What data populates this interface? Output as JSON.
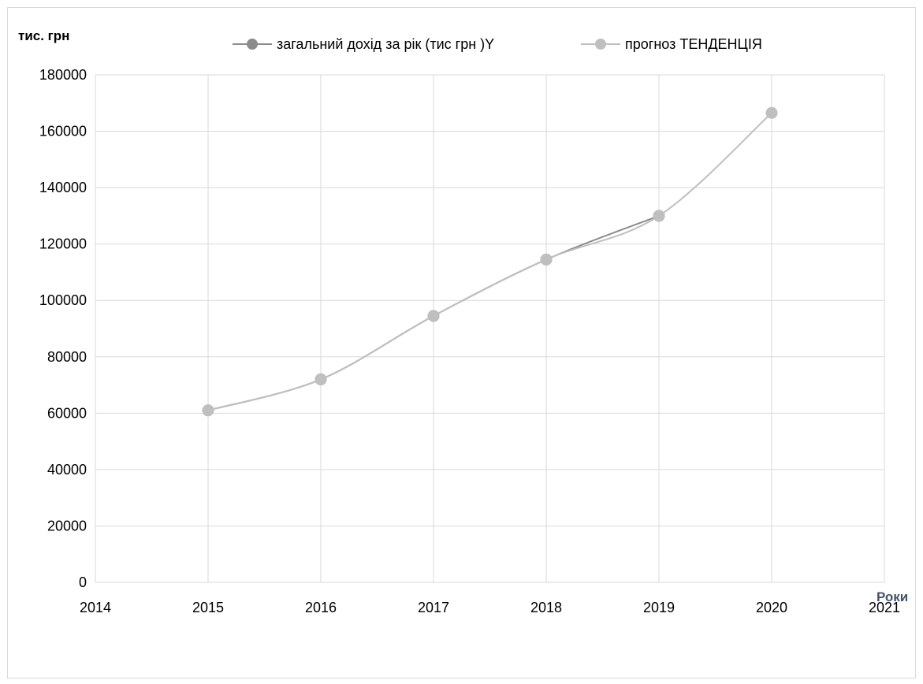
{
  "chart_data": {
    "type": "line",
    "ylabel": "тис. грн",
    "xlabel": "Роки",
    "xlim": [
      2014,
      2021
    ],
    "ylim": [
      0,
      180000
    ],
    "x_ticks": [
      "2014",
      "2015",
      "2016",
      "2017",
      "2018",
      "2019",
      "2020",
      "2021"
    ],
    "y_ticks": [
      "0",
      "20000",
      "40000",
      "60000",
      "80000",
      "100000",
      "120000",
      "140000",
      "160000",
      "180000"
    ],
    "grid": true,
    "legend_position": "top",
    "series": [
      {
        "name": "загальний дохід за рік (тис грн )Y",
        "color": "#8c8c8c",
        "x": [
          2015,
          2016,
          2017,
          2018,
          2019
        ],
        "y": [
          61000,
          72000,
          94500,
          114500,
          130000
        ]
      },
      {
        "name": "прогноз ТЕНДЕНЦІЯ",
        "color": "#bfbfbf",
        "x": [
          2015,
          2016,
          2017,
          2018,
          2019,
          2020
        ],
        "y": [
          61000,
          72000,
          94500,
          114500,
          130000,
          166500
        ]
      }
    ]
  }
}
